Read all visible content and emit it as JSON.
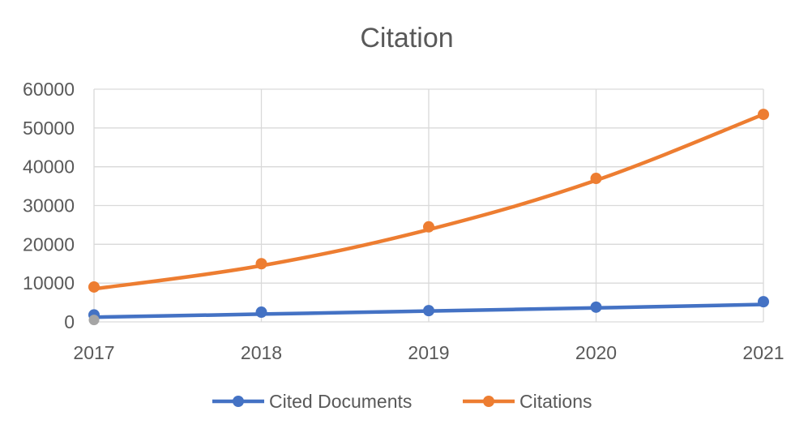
{
  "chart_data": {
    "type": "line",
    "title": "Citation",
    "categories": [
      "2017",
      "2018",
      "2019",
      "2020",
      "2021"
    ],
    "series": [
      {
        "name": "Cited Documents",
        "values": [
          1200,
          2000,
          2800,
          3600,
          4500
        ],
        "marker_values": [
          1800,
          2500,
          2900,
          3800,
          5200
        ],
        "color": "#4472C4"
      },
      {
        "name": "Citations",
        "values": [
          8500,
          14500,
          23800,
          36500,
          53500
        ],
        "marker_values": [
          9000,
          15000,
          24500,
          37000,
          53500
        ],
        "color": "#ED7D31"
      }
    ],
    "extra_points": [
      {
        "x": "2017",
        "y": 500,
        "color": "#A5A5A5"
      }
    ],
    "ylim": [
      0,
      60000
    ],
    "yticks": [
      "0",
      "10000",
      "20000",
      "30000",
      "40000",
      "50000",
      "60000"
    ],
    "xlabel": "",
    "ylabel": "",
    "grid": true,
    "legend_position": "bottom"
  },
  "colors": {
    "grid": "#D9D9D9",
    "text": "#595959",
    "axis": "#D9D9D9"
  }
}
